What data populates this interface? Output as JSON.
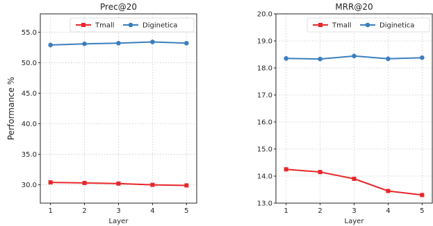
{
  "chart_data": [
    {
      "type": "line",
      "title": "Prec@20",
      "xlabel": "Layer",
      "ylabel": "Performance %",
      "x": [
        1,
        2,
        3,
        4,
        5
      ],
      "xlim": [
        0.7,
        5.3
      ],
      "ylim": [
        27.0,
        58.0
      ],
      "yticks": [
        30.0,
        35.0,
        40.0,
        45.0,
        50.0,
        55.0
      ],
      "ytick_labels": [
        "30.0",
        "35.0",
        "40.0",
        "45.0",
        "50.0",
        "55.0"
      ],
      "grid": true,
      "legend": "top-right",
      "series": [
        {
          "name": "Tmall",
          "color": "#e8262a",
          "marker": "square",
          "values": [
            30.4,
            30.3,
            30.2,
            30.0,
            29.9
          ]
        },
        {
          "name": "Diginetica",
          "color": "#3a7ebf",
          "marker": "circle",
          "values": [
            52.9,
            53.1,
            53.2,
            53.4,
            53.2
          ]
        }
      ]
    },
    {
      "type": "line",
      "title": "MRR@20",
      "xlabel": "Layer",
      "ylabel": "",
      "x": [
        1,
        2,
        3,
        4,
        5
      ],
      "xlim": [
        0.7,
        5.3
      ],
      "ylim": [
        13.0,
        20.0
      ],
      "yticks": [
        13.0,
        14.0,
        15.0,
        16.0,
        17.0,
        18.0,
        19.0,
        20.0
      ],
      "ytick_labels": [
        "13.0",
        "14.0",
        "15.0",
        "16.0",
        "17.0",
        "18.0",
        "19.0",
        "20.0"
      ],
      "grid": true,
      "legend": "top-right",
      "series": [
        {
          "name": "Tmall",
          "color": "#e8262a",
          "marker": "square",
          "values": [
            14.25,
            14.15,
            13.9,
            13.45,
            13.3
          ]
        },
        {
          "name": "Diginetica",
          "color": "#3a7ebf",
          "marker": "circle",
          "values": [
            18.35,
            18.33,
            18.44,
            18.34,
            18.38
          ]
        }
      ]
    }
  ]
}
